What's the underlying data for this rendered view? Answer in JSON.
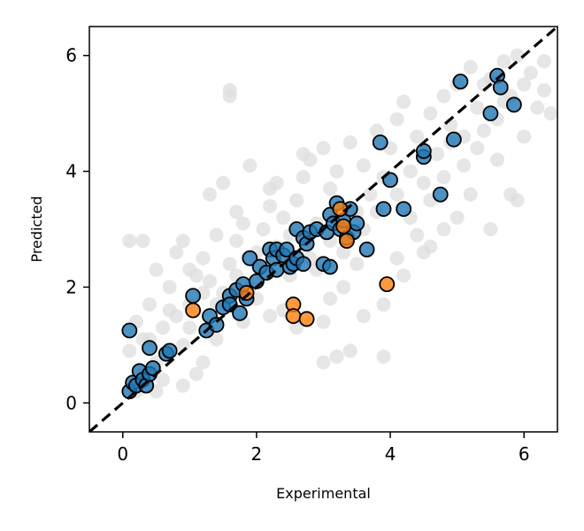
{
  "chart_data": {
    "type": "scatter",
    "title": "",
    "xlabel": "Experimental",
    "ylabel": "Predicted",
    "xlim": [
      -0.5,
      6.5
    ],
    "ylim": [
      -0.5,
      6.5
    ],
    "xticks": [
      0,
      2,
      4,
      6
    ],
    "yticks": [
      0,
      2,
      4,
      6
    ],
    "grid": false,
    "legend": "none",
    "reference_line": {
      "style": "dashed",
      "color": "#000000",
      "points": [
        [
          -0.5,
          -0.5
        ],
        [
          6.5,
          6.5
        ]
      ]
    },
    "colors": {
      "background_points": "#dddddd",
      "series_1": "#1f77b4",
      "series_2": "#ff7f0e",
      "edge": "#000000"
    },
    "series": [
      {
        "color": "#dddddd",
        "values": [
          [
            0.2,
            0.2
          ],
          [
            0.3,
            0.5
          ],
          [
            0.1,
            0.9
          ],
          [
            0.4,
            1.1
          ],
          [
            0.5,
            0.7
          ],
          [
            0.6,
            1.3
          ],
          [
            0.2,
            1.4
          ],
          [
            0.8,
            1.5
          ],
          [
            0.9,
            1.0
          ],
          [
            1.0,
            1.7
          ],
          [
            0.7,
            2.0
          ],
          [
            0.5,
            2.3
          ],
          [
            1.1,
            2.2
          ],
          [
            1.2,
            2.5
          ],
          [
            0.9,
            2.8
          ],
          [
            0.3,
            2.8
          ],
          [
            0.1,
            2.8
          ],
          [
            1.4,
            2.9
          ],
          [
            1.3,
            2.1
          ],
          [
            1.6,
            2.4
          ],
          [
            1.5,
            1.9
          ],
          [
            1.7,
            2.8
          ],
          [
            1.8,
            3.1
          ],
          [
            1.9,
            2.0
          ],
          [
            2.0,
            2.6
          ],
          [
            2.1,
            3.0
          ],
          [
            2.2,
            3.4
          ],
          [
            2.1,
            2.2
          ],
          [
            2.3,
            3.8
          ],
          [
            2.4,
            3.2
          ],
          [
            2.5,
            2.9
          ],
          [
            2.6,
            3.5
          ],
          [
            2.7,
            3.9
          ],
          [
            2.8,
            4.2
          ],
          [
            2.9,
            3.1
          ],
          [
            3.0,
            4.4
          ],
          [
            3.1,
            3.7
          ],
          [
            3.2,
            4.0
          ],
          [
            3.3,
            2.6
          ],
          [
            3.4,
            4.5
          ],
          [
            3.5,
            3.3
          ],
          [
            3.6,
            4.1
          ],
          [
            3.7,
            3.6
          ],
          [
            3.8,
            4.7
          ],
          [
            3.9,
            3.9
          ],
          [
            4.0,
            4.4
          ],
          [
            4.1,
            4.9
          ],
          [
            4.2,
            5.2
          ],
          [
            4.3,
            4.0
          ],
          [
            4.4,
            4.6
          ],
          [
            4.5,
            3.8
          ],
          [
            4.6,
            5.0
          ],
          [
            4.7,
            4.3
          ],
          [
            4.8,
            5.3
          ],
          [
            4.9,
            4.8
          ],
          [
            5.0,
            5.5
          ],
          [
            5.1,
            4.6
          ],
          [
            5.2,
            5.8
          ],
          [
            5.3,
            5.1
          ],
          [
            5.4,
            4.7
          ],
          [
            5.5,
            5.6
          ],
          [
            5.6,
            4.9
          ],
          [
            5.7,
            5.9
          ],
          [
            5.8,
            5.3
          ],
          [
            5.9,
            6.0
          ],
          [
            6.0,
            5.5
          ],
          [
            6.1,
            5.7
          ],
          [
            6.2,
            5.1
          ],
          [
            6.3,
            5.4
          ],
          [
            6.4,
            5.0
          ],
          [
            5.8,
            3.6
          ],
          [
            5.9,
            3.5
          ],
          [
            5.5,
            3.0
          ],
          [
            5.0,
            3.2
          ],
          [
            4.6,
            2.7
          ],
          [
            4.4,
            2.9
          ],
          [
            4.1,
            2.5
          ],
          [
            3.9,
            1.7
          ],
          [
            3.6,
            1.5
          ],
          [
            3.3,
            2.0
          ],
          [
            3.0,
            1.4
          ],
          [
            2.9,
            2.3
          ],
          [
            3.1,
            1.8
          ],
          [
            3.5,
            2.4
          ],
          [
            2.6,
            1.3
          ],
          [
            2.4,
            1.6
          ],
          [
            3.9,
            0.8
          ],
          [
            3.4,
            0.9
          ],
          [
            3.0,
            0.7
          ],
          [
            3.2,
            0.8
          ],
          [
            1.6,
            5.3
          ],
          [
            1.6,
            5.4
          ],
          [
            1.7,
            3.3
          ],
          [
            1.3,
            3.6
          ],
          [
            1.9,
            4.1
          ],
          [
            2.2,
            3.7
          ],
          [
            2.7,
            4.3
          ],
          [
            1.5,
            3.8
          ],
          [
            0.8,
            2.6
          ],
          [
            0.4,
            1.7
          ],
          [
            0.6,
            0.4
          ],
          [
            1.0,
            1.3
          ],
          [
            1.2,
            0.7
          ],
          [
            1.4,
            1.1
          ],
          [
            1.8,
            1.4
          ],
          [
            2.0,
            1.8
          ],
          [
            2.2,
            1.5
          ],
          [
            0.9,
            0.3
          ],
          [
            1.1,
            0.5
          ],
          [
            0.5,
            0.2
          ],
          [
            3.1,
            2.8
          ],
          [
            3.3,
            3.1
          ],
          [
            3.6,
            3.0
          ],
          [
            3.8,
            3.3
          ],
          [
            4.1,
            3.6
          ],
          [
            4.3,
            3.2
          ],
          [
            4.6,
            3.5
          ],
          [
            4.8,
            3.9
          ],
          [
            5.1,
            4.1
          ],
          [
            5.3,
            4.4
          ],
          [
            2.8,
            2.5
          ],
          [
            2.5,
            2.2
          ],
          [
            2.3,
            2.7
          ],
          [
            2.0,
            2.4
          ],
          [
            1.7,
            2.2
          ],
          [
            1.4,
            1.7
          ],
          [
            1.2,
            1.9
          ],
          [
            1.0,
            2.3
          ],
          [
            0.7,
            1.6
          ],
          [
            0.3,
            1.1
          ],
          [
            4.2,
            2.2
          ],
          [
            4.5,
            2.6
          ],
          [
            4.8,
            3.0
          ],
          [
            5.2,
            3.6
          ],
          [
            5.6,
            4.2
          ],
          [
            6.0,
            4.6
          ],
          [
            6.3,
            5.9
          ],
          [
            5.7,
            5.2
          ],
          [
            5.4,
            5.5
          ],
          [
            4.9,
            4.5
          ]
        ]
      },
      {
        "color": "#1f77b4",
        "values": [
          [
            0.1,
            1.25
          ],
          [
            0.1,
            0.2
          ],
          [
            0.15,
            0.35
          ],
          [
            0.2,
            0.3
          ],
          [
            0.25,
            0.55
          ],
          [
            0.3,
            0.4
          ],
          [
            0.35,
            0.3
          ],
          [
            0.4,
            0.5
          ],
          [
            0.45,
            0.6
          ],
          [
            0.4,
            0.95
          ],
          [
            0.65,
            0.85
          ],
          [
            0.7,
            0.9
          ],
          [
            1.05,
            1.85
          ],
          [
            1.25,
            1.25
          ],
          [
            1.3,
            1.5
          ],
          [
            1.4,
            1.35
          ],
          [
            1.5,
            1.65
          ],
          [
            1.6,
            1.85
          ],
          [
            1.6,
            1.7
          ],
          [
            1.75,
            1.55
          ],
          [
            1.7,
            1.95
          ],
          [
            1.8,
            2.05
          ],
          [
            1.85,
            1.8
          ],
          [
            1.9,
            2.5
          ],
          [
            2.0,
            2.1
          ],
          [
            2.05,
            2.35
          ],
          [
            2.15,
            2.25
          ],
          [
            2.2,
            2.65
          ],
          [
            2.25,
            2.5
          ],
          [
            2.3,
            2.3
          ],
          [
            2.3,
            2.65
          ],
          [
            2.4,
            2.55
          ],
          [
            2.45,
            2.65
          ],
          [
            2.5,
            2.35
          ],
          [
            2.55,
            2.4
          ],
          [
            2.6,
            2.5
          ],
          [
            2.6,
            3.0
          ],
          [
            2.7,
            2.4
          ],
          [
            2.7,
            2.85
          ],
          [
            2.75,
            2.75
          ],
          [
            2.8,
            2.95
          ],
          [
            2.9,
            3.0
          ],
          [
            3.0,
            2.4
          ],
          [
            3.05,
            2.95
          ],
          [
            3.1,
            3.25
          ],
          [
            3.15,
            3.1
          ],
          [
            3.2,
            3.45
          ],
          [
            3.25,
            3.0
          ],
          [
            3.3,
            3.15
          ],
          [
            3.35,
            2.85
          ],
          [
            3.4,
            3.35
          ],
          [
            3.45,
            2.95
          ],
          [
            3.5,
            3.1
          ],
          [
            3.1,
            2.35
          ],
          [
            3.65,
            2.65
          ],
          [
            3.9,
            3.35
          ],
          [
            3.85,
            4.5
          ],
          [
            4.0,
            3.85
          ],
          [
            4.2,
            3.35
          ],
          [
            4.5,
            4.25
          ],
          [
            4.5,
            4.35
          ],
          [
            4.75,
            3.6
          ],
          [
            4.95,
            4.55
          ],
          [
            5.05,
            5.55
          ],
          [
            5.5,
            5.0
          ],
          [
            5.6,
            5.65
          ],
          [
            5.65,
            5.45
          ],
          [
            5.85,
            5.15
          ]
        ]
      },
      {
        "color": "#ff7f0e",
        "values": [
          [
            1.05,
            1.6
          ],
          [
            1.85,
            1.9
          ],
          [
            2.55,
            1.7
          ],
          [
            2.55,
            1.5
          ],
          [
            2.75,
            1.45
          ],
          [
            3.25,
            3.35
          ],
          [
            3.3,
            3.05
          ],
          [
            3.35,
            2.8
          ],
          [
            3.95,
            2.05
          ]
        ]
      }
    ]
  }
}
